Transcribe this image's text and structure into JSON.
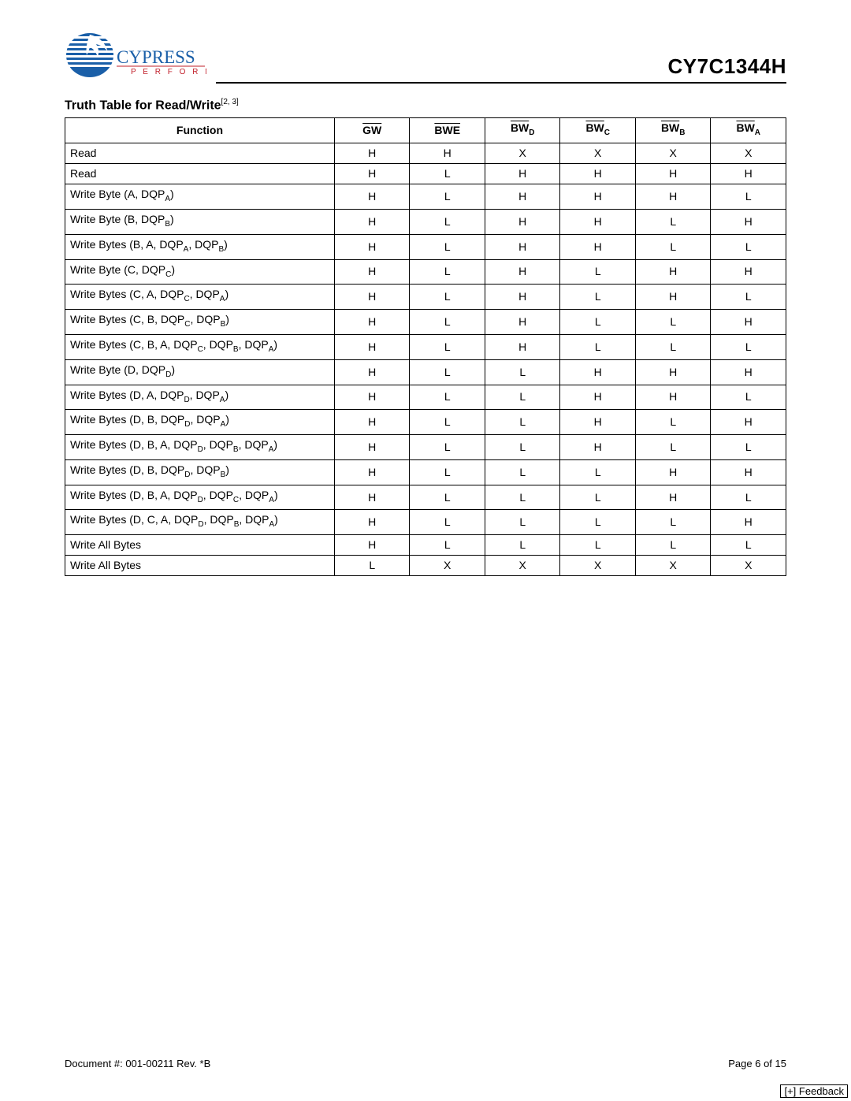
{
  "header": {
    "company": "CYPRESS",
    "tagline": "P E R F O R M",
    "part_number": "CY7C1344H"
  },
  "title": {
    "text": "Truth Table for Read/Write",
    "superscript": "[2, 3]"
  },
  "table": {
    "columns": [
      {
        "label": "Function",
        "overline": false,
        "sub": ""
      },
      {
        "label": "GW",
        "overline": true,
        "sub": ""
      },
      {
        "label": "BWE",
        "overline": true,
        "sub": ""
      },
      {
        "label": "BW",
        "overline": true,
        "sub": "D"
      },
      {
        "label": "BW",
        "overline": true,
        "sub": "C"
      },
      {
        "label": "BW",
        "overline": true,
        "sub": "B"
      },
      {
        "label": "BW",
        "overline": true,
        "sub": "A"
      }
    ],
    "rows": [
      {
        "func_parts": [
          {
            "t": "Read"
          }
        ],
        "v": [
          "H",
          "H",
          "X",
          "X",
          "X",
          "X"
        ]
      },
      {
        "func_parts": [
          {
            "t": "Read"
          }
        ],
        "v": [
          "H",
          "L",
          "H",
          "H",
          "H",
          "H"
        ]
      },
      {
        "func_parts": [
          {
            "t": "Write Byte (A, DQP"
          },
          {
            "sub": "A"
          },
          {
            "t": ")"
          }
        ],
        "v": [
          "H",
          "L",
          "H",
          "H",
          "H",
          "L"
        ]
      },
      {
        "func_parts": [
          {
            "t": "Write Byte (B, DQP"
          },
          {
            "sub": "B"
          },
          {
            "t": ")"
          }
        ],
        "v": [
          "H",
          "L",
          "H",
          "H",
          "L",
          "H"
        ]
      },
      {
        "func_parts": [
          {
            "t": "Write Bytes (B, A, DQP"
          },
          {
            "sub": "A"
          },
          {
            "t": ", DQP"
          },
          {
            "sub": "B"
          },
          {
            "t": ")"
          }
        ],
        "v": [
          "H",
          "L",
          "H",
          "H",
          "L",
          "L"
        ]
      },
      {
        "func_parts": [
          {
            "t": "Write Byte (C, DQP"
          },
          {
            "sub": "C"
          },
          {
            "t": ")"
          }
        ],
        "v": [
          "H",
          "L",
          "H",
          "L",
          "H",
          "H"
        ]
      },
      {
        "func_parts": [
          {
            "t": "Write Bytes (C, A, DQP"
          },
          {
            "sub": "C"
          },
          {
            "t": ", DQP"
          },
          {
            "sub": "A"
          },
          {
            "t": ")"
          }
        ],
        "v": [
          "H",
          "L",
          "H",
          "L",
          "H",
          "L"
        ]
      },
      {
        "func_parts": [
          {
            "t": "Write Bytes (C, B, DQP"
          },
          {
            "sub": "C"
          },
          {
            "t": ", DQP"
          },
          {
            "sub": "B"
          },
          {
            "t": ")"
          }
        ],
        "v": [
          "H",
          "L",
          "H",
          "L",
          "L",
          "H"
        ]
      },
      {
        "func_parts": [
          {
            "t": "Write Bytes (C, B, A, DQP"
          },
          {
            "sub": "C"
          },
          {
            "t": ", DQP"
          },
          {
            "sub": "B"
          },
          {
            "t": ", DQP"
          },
          {
            "sub": "A"
          },
          {
            "t": ")"
          }
        ],
        "v": [
          "H",
          "L",
          "H",
          "L",
          "L",
          "L"
        ]
      },
      {
        "func_parts": [
          {
            "t": "Write Byte (D, DQP"
          },
          {
            "sub": "D"
          },
          {
            "t": ")"
          }
        ],
        "v": [
          "H",
          "L",
          "L",
          "H",
          "H",
          "H"
        ]
      },
      {
        "func_parts": [
          {
            "t": "Write Bytes (D, A, DQP"
          },
          {
            "sub": "D"
          },
          {
            "t": ", DQP"
          },
          {
            "sub": "A"
          },
          {
            "t": ")"
          }
        ],
        "v": [
          "H",
          "L",
          "L",
          "H",
          "H",
          "L"
        ]
      },
      {
        "func_parts": [
          {
            "t": "Write Bytes (D, B, DQP"
          },
          {
            "sub": "D"
          },
          {
            "t": ", DQP"
          },
          {
            "sub": "A"
          },
          {
            "t": ")"
          }
        ],
        "v": [
          "H",
          "L",
          "L",
          "H",
          "L",
          "H"
        ]
      },
      {
        "func_parts": [
          {
            "t": "Write Bytes (D, B, A, DQP"
          },
          {
            "sub": "D"
          },
          {
            "t": ", DQP"
          },
          {
            "sub": "B"
          },
          {
            "t": ", DQP"
          },
          {
            "sub": "A"
          },
          {
            "t": ")"
          }
        ],
        "v": [
          "H",
          "L",
          "L",
          "H",
          "L",
          "L"
        ]
      },
      {
        "func_parts": [
          {
            "t": "Write Bytes (D, B, DQP"
          },
          {
            "sub": "D"
          },
          {
            "t": ", DQP"
          },
          {
            "sub": "B"
          },
          {
            "t": ")"
          }
        ],
        "v": [
          "H",
          "L",
          "L",
          "L",
          "H",
          "H"
        ]
      },
      {
        "func_parts": [
          {
            "t": "Write Bytes (D, B, A, DQP"
          },
          {
            "sub": "D"
          },
          {
            "t": ", DQP"
          },
          {
            "sub": "C"
          },
          {
            "t": ", DQP"
          },
          {
            "sub": "A"
          },
          {
            "t": ")"
          }
        ],
        "v": [
          "H",
          "L",
          "L",
          "L",
          "H",
          "L"
        ]
      },
      {
        "func_parts": [
          {
            "t": "Write Bytes (D, C, A, DQP"
          },
          {
            "sub": "D"
          },
          {
            "t": ", DQP"
          },
          {
            "sub": "B"
          },
          {
            "t": ", DQP"
          },
          {
            "sub": "A"
          },
          {
            "t": ")"
          }
        ],
        "v": [
          "H",
          "L",
          "L",
          "L",
          "L",
          "H"
        ]
      },
      {
        "func_parts": [
          {
            "t": "Write All Bytes"
          }
        ],
        "v": [
          "H",
          "L",
          "L",
          "L",
          "L",
          "L"
        ]
      },
      {
        "func_parts": [
          {
            "t": "Write All Bytes"
          }
        ],
        "v": [
          "L",
          "X",
          "X",
          "X",
          "X",
          "X"
        ]
      }
    ]
  },
  "footer": {
    "doc": "Document #: 001-00211 Rev. *B",
    "page": "Page 6 of 15",
    "feedback": "[+] Feedback"
  },
  "logo_colors": {
    "blue": "#1a5fa8",
    "red": "#c11f2a"
  }
}
